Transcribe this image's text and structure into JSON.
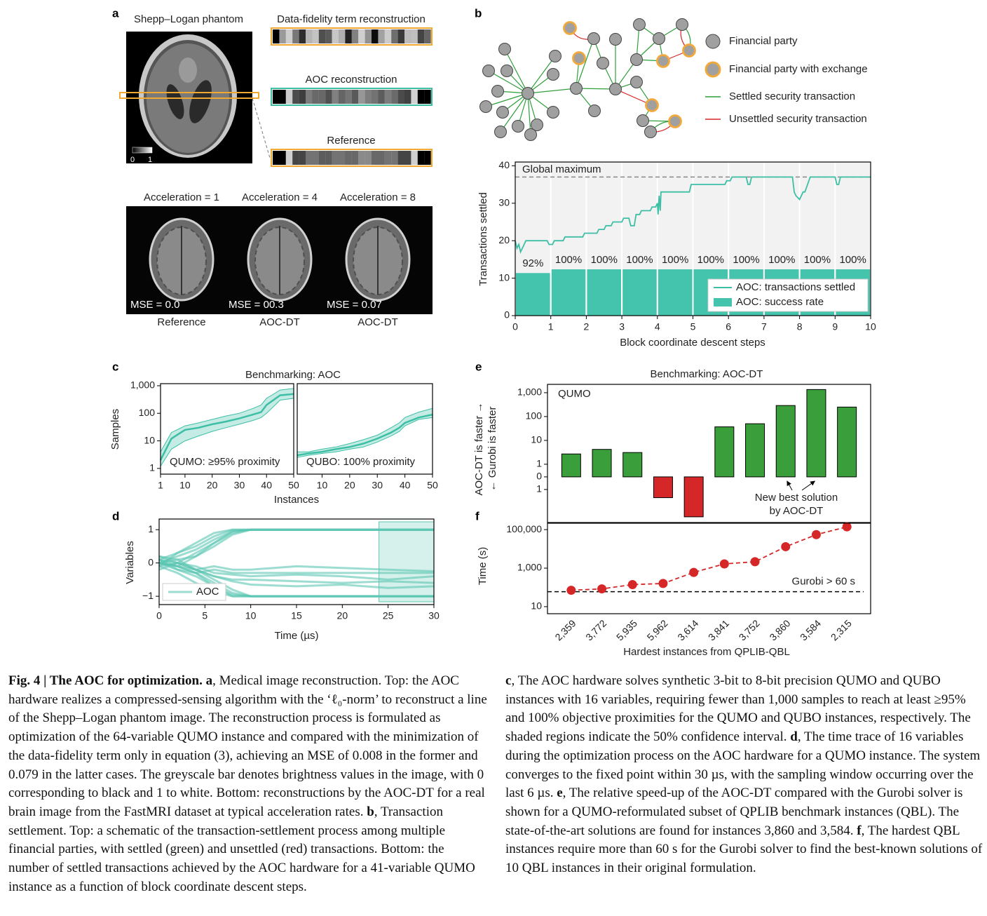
{
  "panel_labels": [
    "a",
    "b",
    "c",
    "d",
    "e",
    "f"
  ],
  "panel_a": {
    "phantom_title": "Shepp–Logan phantom",
    "strips": [
      "Data-fidelity term reconstruction",
      "AOC reconstruction",
      "Reference"
    ],
    "colorbar": [
      0,
      1
    ],
    "brains": [
      {
        "title": "Acceleration = 1",
        "mse": "MSE = 0.0",
        "label": "Reference"
      },
      {
        "title": "Acceleration = 4",
        "mse": "MSE = 00.3",
        "label": "AOC-DT"
      },
      {
        "title": "Acceleration = 8",
        "mse": "MSE = 0.07",
        "label": "AOC-DT"
      }
    ]
  },
  "network_legend": {
    "items": [
      "Financial party",
      "Financial party with exchange",
      "Settled security transaction",
      "Unsettled security transaction"
    ]
  },
  "chart_data": [
    {
      "type": "combo",
      "xlabel": "Block coordinate descent steps",
      "ylabel": "Transactions settled",
      "xlim": [
        0,
        10
      ],
      "ylim": [
        0,
        41
      ],
      "xticks": [
        0,
        1,
        2,
        3,
        4,
        5,
        6,
        7,
        8,
        9,
        10
      ],
      "yticks": [
        0,
        10,
        20,
        30,
        40
      ],
      "grid": "x",
      "background": "#f2f2f2",
      "legend": "lower right",
      "reference": {
        "label": "Global maximum",
        "value": 37
      },
      "line": {
        "name": "AOC: transactions settled",
        "color": "#3dbfa6",
        "x": [
          0,
          0.05,
          0.1,
          0.15,
          0.25,
          0.3,
          0.4,
          0.45,
          0.9,
          0.95,
          1.05,
          1.1,
          1.35,
          1.4,
          1.9,
          1.95,
          2.3,
          2.35,
          2.5,
          2.55,
          2.7,
          2.75,
          3.0,
          3.05,
          3.2,
          3.25,
          3.35,
          3.4,
          3.5,
          3.55,
          3.8,
          3.85,
          3.95,
          4.0,
          4.02,
          4.05,
          4.08,
          4.1,
          4.2,
          4.25,
          4.9,
          4.95,
          5.9,
          5.95,
          6.05,
          6.1,
          6.5,
          6.55,
          6.6,
          6.65,
          6.7,
          7.8,
          7.85,
          7.9,
          8.0,
          8.1,
          8.15,
          8.3,
          8.35,
          9.0,
          9.05,
          9.1,
          9.15,
          10
        ],
        "values": [
          20,
          18,
          19,
          17,
          19,
          20,
          20,
          20,
          20,
          19,
          19,
          20,
          20,
          21,
          21,
          22,
          22,
          23,
          23,
          24,
          24,
          25,
          25,
          26,
          26,
          24,
          24,
          27,
          27,
          28,
          28,
          29,
          29,
          30,
          27,
          32,
          28,
          33,
          33,
          33,
          33,
          35,
          35,
          36,
          36,
          37,
          37,
          35,
          35,
          37,
          37,
          37,
          33,
          32,
          31,
          33,
          33,
          37,
          37,
          37,
          35,
          35,
          37,
          37
        ]
      },
      "bars": {
        "name": "AOC: success rate",
        "color": "#45c4ad",
        "values": [
          92,
          100,
          100,
          100,
          100,
          100,
          100,
          100,
          100,
          100
        ],
        "value_labels": [
          "92%",
          "100%",
          "100%",
          "100%",
          "100%",
          "100%",
          "100%",
          "100%",
          "100%",
          "100%"
        ]
      }
    },
    {
      "type": "band",
      "title": "Benchmarking: AOC",
      "xlabel": "Instances",
      "ylabel": "Samples",
      "annotation": "QUMO: ≥95% proximity",
      "yscale": "log",
      "xlim": [
        1,
        50
      ],
      "ylim": [
        0.62,
        1190
      ],
      "xticks": [
        1,
        10,
        20,
        30,
        40,
        50
      ],
      "yticks": [
        1,
        10,
        100,
        {
          "value": 1000,
          "label": "1,000"
        }
      ],
      "x": [
        1,
        5,
        10,
        15,
        20,
        25,
        30,
        35,
        38,
        40,
        45,
        50
      ],
      "series": [
        {
          "color": "#3dbfa6",
          "values": [
            2,
            12,
            25,
            30,
            40,
            50,
            65,
            90,
            110,
            200,
            450,
            500
          ],
          "low": [
            1.2,
            5,
            10,
            15,
            22,
            30,
            40,
            55,
            70,
            100,
            300,
            350
          ],
          "high": [
            4,
            20,
            35,
            45,
            60,
            80,
            100,
            150,
            200,
            350,
            700,
            800
          ]
        }
      ]
    },
    {
      "type": "band",
      "annotation": "QUBO: 100% proximity",
      "yscale": "log",
      "xlim": [
        1,
        50
      ],
      "ylim": [
        0.62,
        1190
      ],
      "xticks": [
        10,
        20,
        30,
        40,
        50
      ],
      "x": [
        1,
        5,
        10,
        15,
        20,
        25,
        30,
        35,
        38,
        40,
        45,
        50
      ],
      "series": [
        {
          "color": "#3dbfa6",
          "values": [
            3,
            3.5,
            4,
            5,
            6,
            8,
            12,
            20,
            30,
            45,
            70,
            90
          ],
          "low": [
            2.5,
            3,
            3.5,
            4,
            5,
            6,
            9,
            15,
            22,
            35,
            60,
            70
          ],
          "high": [
            4,
            4,
            5,
            6,
            8,
            11,
            16,
            30,
            45,
            70,
            110,
            150
          ]
        }
      ]
    },
    {
      "type": "line",
      "xlabel": "Time (µs)",
      "ylabel": "Variables",
      "legend": "AOC",
      "legend_position": "lower left",
      "xlim": [
        0,
        30
      ],
      "ylim": [
        -1.25,
        1.32
      ],
      "xticks": [
        0,
        5,
        10,
        15,
        20,
        25,
        30
      ],
      "yticks": [
        {
          "value": -1,
          "label": "−1"
        },
        0,
        1
      ],
      "window": [
        24,
        30
      ],
      "color": "#5cc7b2",
      "x": [
        0,
        2,
        4,
        6,
        8,
        10,
        15,
        20,
        25,
        30
      ],
      "series": [
        {
          "values": [
            0,
            0.2,
            0.4,
            0.7,
            0.95,
            1,
            1,
            1,
            1,
            1
          ]
        },
        {
          "values": [
            0.1,
            0,
            0.3,
            0.6,
            0.9,
            1,
            1,
            1,
            1,
            1
          ]
        },
        {
          "values": [
            -0.1,
            0.3,
            0.5,
            0.8,
            1,
            1,
            1,
            1,
            1,
            1
          ]
        },
        {
          "values": [
            0.2,
            0.1,
            0.2,
            0.5,
            0.85,
            1,
            1,
            1,
            1,
            1
          ]
        },
        {
          "values": [
            0,
            -0.1,
            0.2,
            0.6,
            0.95,
            1,
            1,
            1,
            1,
            1
          ]
        },
        {
          "values": [
            0.1,
            0.3,
            0.6,
            0.9,
            1,
            1,
            1,
            1,
            1,
            1
          ]
        },
        {
          "values": [
            0,
            -0.2,
            -0.4,
            -0.7,
            -0.95,
            -1,
            -1,
            -1,
            -1,
            -1
          ]
        },
        {
          "values": [
            -0.1,
            -0.3,
            -0.6,
            -0.85,
            -1,
            -1,
            -1,
            -1,
            -1,
            -1
          ]
        },
        {
          "values": [
            0.1,
            -0.1,
            -0.3,
            -0.6,
            -0.9,
            -1,
            -1,
            -1,
            -1,
            -1
          ]
        },
        {
          "values": [
            -0.2,
            0,
            -0.2,
            -0.5,
            -0.8,
            -1,
            -1,
            -1,
            -1,
            -1
          ]
        },
        {
          "values": [
            0,
            -0.1,
            -0.3,
            -0.7,
            -1,
            -1,
            -1,
            -1,
            -1,
            -1
          ]
        },
        {
          "values": [
            0,
            -0.1,
            -0.2,
            -0.1,
            -0.2,
            -0.2,
            -0.1,
            -0.15,
            -0.2,
            -0.25
          ]
        },
        {
          "values": [
            0.1,
            -0.2,
            -0.3,
            -0.2,
            -0.3,
            -0.3,
            -0.3,
            -0.3,
            -0.3,
            -0.3
          ]
        },
        {
          "values": [
            -0.1,
            0,
            -0.1,
            -0.3,
            -0.35,
            -0.4,
            -0.35,
            -0.4,
            -0.5,
            -0.4
          ]
        },
        {
          "values": [
            0,
            0.1,
            -0.2,
            -0.4,
            -0.5,
            -0.5,
            -0.55,
            -0.6,
            -0.55,
            -0.6
          ]
        },
        {
          "values": [
            0.2,
            0,
            -0.2,
            -0.4,
            -0.55,
            -0.65,
            -0.7,
            -0.65,
            -0.75,
            -0.7
          ]
        }
      ]
    },
    {
      "type": "bar",
      "title": "Benchmarking: AOC-DT",
      "ylabel": [
        "AOC-DT is faster →",
        "← Gurobi is faster"
      ],
      "annotations": [
        "QUMO",
        "New best solution",
        "by AOC-DT"
      ],
      "arrows_to": [
        7,
        8
      ],
      "yscale": "symlog",
      "ylim": [
        -24,
        2240
      ],
      "yticks": [
        {
          "value": 1000,
          "label": "1,000"
        },
        100,
        10,
        1,
        0,
        {
          "value": -1,
          "label": "1"
        }
      ],
      "values": [
        2.7,
        4.2,
        3.1,
        -2.2,
        -14,
        37,
        50,
        290,
        1360,
        250
      ],
      "colors": {
        "positive": "#3a9e3a",
        "negative": "#d62728"
      }
    },
    {
      "type": "line",
      "xlabel": "Hardest instances from QPLIB-QBL",
      "ylabel": "Time (s)",
      "yscale": "log",
      "ylim": [
        4.3,
        215000
      ],
      "yticks": [
        10,
        {
          "value": 1000,
          "label": "1,000"
        },
        {
          "value": 100000,
          "label": "100,000"
        }
      ],
      "categories": [
        "2,359",
        "3,772",
        "5,935",
        "5,962",
        "3,614",
        "3,841",
        "3,752",
        "3,860",
        "3,584",
        "2,315"
      ],
      "series": [
        {
          "color": "#d62728",
          "values": [
            71,
            84,
            140,
            160,
            600,
            1660,
            2150,
            13000,
            55000,
            140000
          ]
        }
      ],
      "threshold": {
        "value": 60,
        "label": "Gurobi > 60 s"
      },
      "markers": true,
      "dashed": true
    }
  ],
  "caption": {
    "left": [
      {
        "text": "Fig. 4 | The AOC for optimization. a",
        "bold": true
      },
      {
        "text": ", Medical image reconstruction. Top: the AOC hardware realizes a compressed-sensing algorithm with the ‘ℓ₀-norm’ to reconstruct a line of the Shepp–Logan phantom image. The reconstruction process is formulated as optimization of the 64-variable QUMO instance and compared with the minimization of the data-fidelity term only in equation (3), achieving an MSE of 0.008 in the former and 0.079 in the latter cases. The greyscale bar denotes brightness values in the image, with 0 corresponding to black and 1 to white. Bottom: reconstructions by the AOC-DT for a real brain image from the FastMRI dataset at typical acceleration rates. "
      },
      {
        "text": "b",
        "bold": true
      },
      {
        "text": ", Transaction settlement. Top: a schematic of the transaction-settlement process among multiple financial parties, with settled (green) and unsettled (red) transactions. Bottom: the number of settled transactions achieved by the AOC hardware for a 41-variable QUMO instance as a function of block coordinate descent steps."
      }
    ],
    "right": [
      {
        "text": "c",
        "bold": true
      },
      {
        "text": ", The AOC hardware solves synthetic 3-bit to 8-bit precision QUMO and QUBO instances with 16 variables, requiring fewer than 1,000 samples to reach at least ≥95% and 100% objective proximities for the QUMO and QUBO instances, respectively. The shaded regions indicate the 50% confidence interval. "
      },
      {
        "text": "d",
        "bold": true
      },
      {
        "text": ", The time trace of 16 variables during the optimization process on the AOC hardware for a QUMO instance. The system converges to the fixed point within 30 µs, with the sampling window occurring over the last 6 µs. "
      },
      {
        "text": "e",
        "bold": true
      },
      {
        "text": ", The relative speed-up of the AOC-DT compared with the Gurobi solver is shown for a QUMO-reformulated subset of QPLIB benchmark instances (QBL). The state-of-the-art solutions are found for instances 3,860 and 3,584. "
      },
      {
        "text": "f",
        "bold": true
      },
      {
        "text": ", The hardest QBL instances require more than 60 s for the Gurobi solver to find the best-known solutions of 10 QBL instances in their original formulation."
      }
    ]
  }
}
